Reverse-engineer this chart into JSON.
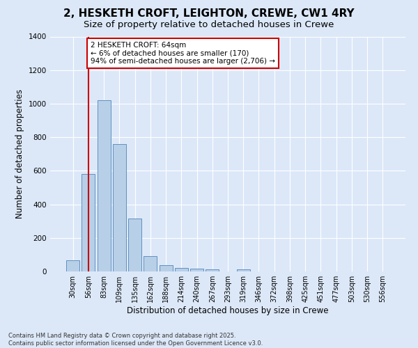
{
  "title1": "2, HESKETH CROFT, LEIGHTON, CREWE, CW1 4RY",
  "title2": "Size of property relative to detached houses in Crewe",
  "xlabel": "Distribution of detached houses by size in Crewe",
  "ylabel": "Number of detached properties",
  "bar_labels": [
    "30sqm",
    "56sqm",
    "83sqm",
    "109sqm",
    "135sqm",
    "162sqm",
    "188sqm",
    "214sqm",
    "240sqm",
    "267sqm",
    "293sqm",
    "319sqm",
    "346sqm",
    "372sqm",
    "398sqm",
    "425sqm",
    "451sqm",
    "477sqm",
    "503sqm",
    "530sqm",
    "556sqm"
  ],
  "bar_values": [
    68,
    580,
    1020,
    760,
    315,
    90,
    38,
    22,
    15,
    12,
    0,
    14,
    0,
    0,
    0,
    0,
    0,
    0,
    0,
    0,
    0
  ],
  "bar_color": "#b8cfe8",
  "bar_edge_color": "#6090c0",
  "background_color": "#dce8f8",
  "grid_color": "#ffffff",
  "red_line_x": 1.0,
  "ylim": [
    0,
    1400
  ],
  "yticks": [
    0,
    200,
    400,
    600,
    800,
    1000,
    1200,
    1400
  ],
  "annotation_text": "2 HESKETH CROFT: 64sqm\n← 6% of detached houses are smaller (170)\n94% of semi-detached houses are larger (2,706) →",
  "annotation_box_color": "#ffffff",
  "annotation_box_edge": "#cc0000",
  "footer_text": "Contains HM Land Registry data © Crown copyright and database right 2025.\nContains public sector information licensed under the Open Government Licence v3.0.",
  "title_fontsize": 11,
  "subtitle_fontsize": 9.5,
  "tick_fontsize": 7,
  "ylabel_fontsize": 8.5,
  "xlabel_fontsize": 8.5,
  "footer_fontsize": 6
}
